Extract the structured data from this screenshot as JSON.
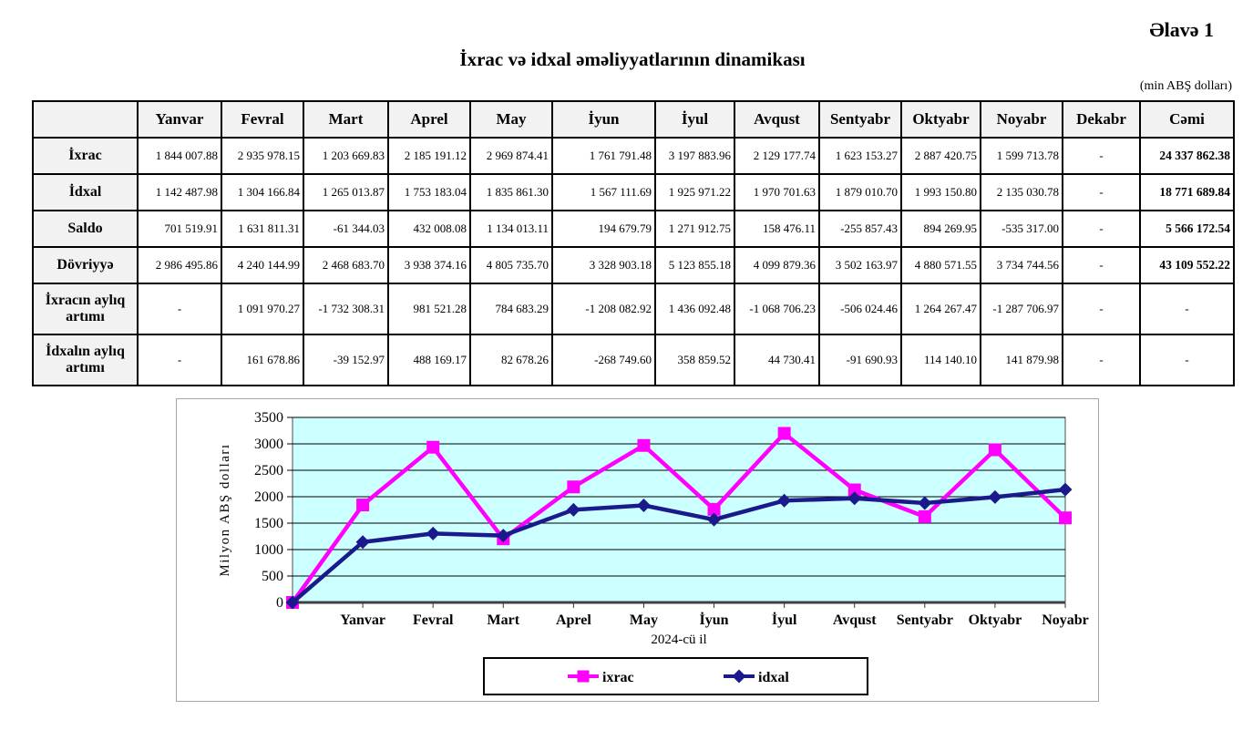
{
  "page": {
    "appendix_label": "Əlavə 1",
    "title": "İxrac və idxal əməliyyatlarının dinamikası",
    "unit_note": "(min ABŞ dolları)"
  },
  "table": {
    "col_headers": [
      "",
      "Yanvar",
      "Fevral",
      "Mart",
      "Aprel",
      "May",
      "İyun",
      "İyul",
      "Avqust",
      "Sentyabr",
      "Oktyabr",
      "Noyabr",
      "Dekabr",
      "Cəmi"
    ],
    "rows": [
      {
        "label": "İxrac",
        "values": [
          "1 844 007.88",
          "2 935 978.15",
          "1 203 669.83",
          "2 185 191.12",
          "2 969 874.41",
          "1 761 791.48",
          "3 197 883.96",
          "2 129 177.74",
          "1 623 153.27",
          "2 887 420.75",
          "1 599 713.78",
          "-",
          "24 337 862.38"
        ]
      },
      {
        "label": "İdxal",
        "values": [
          "1 142 487.98",
          "1 304 166.84",
          "1 265 013.87",
          "1 753 183.04",
          "1 835 861.30",
          "1 567 111.69",
          "1 925 971.22",
          "1 970 701.63",
          "1 879 010.70",
          "1 993 150.80",
          "2 135 030.78",
          "-",
          "18 771 689.84"
        ]
      },
      {
        "label": "Saldo",
        "values": [
          "701 519.91",
          "1 631 811.31",
          "-61 344.03",
          "432 008.08",
          "1 134 013.11",
          "194 679.79",
          "1 271 912.75",
          "158 476.11",
          "-255 857.43",
          "894 269.95",
          "-535 317.00",
          "-",
          "5 566 172.54"
        ]
      },
      {
        "label": "Dövriyyə",
        "values": [
          "2 986 495.86",
          "4 240 144.99",
          "2 468 683.70",
          "3 938 374.16",
          "4 805 735.70",
          "3 328 903.18",
          "5 123 855.18",
          "4 099 879.36",
          "3 502 163.97",
          "4 880 571.55",
          "3 734 744.56",
          "-",
          "43 109 552.22"
        ]
      },
      {
        "label": "İxracın aylıq artımı",
        "values": [
          "-",
          "1 091 970.27",
          "-1 732 308.31",
          "981 521.28",
          "784 683.29",
          "-1 208 082.92",
          "1 436 092.48",
          "-1 068 706.23",
          "-506 024.46",
          "1 264 267.47",
          "-1 287 706.97",
          "-",
          "-"
        ]
      },
      {
        "label": "İdxalın aylıq artımı",
        "values": [
          "-",
          "161 678.86",
          "-39 152.97",
          "488 169.17",
          "82 678.26",
          "-268 749.60",
          "358 859.52",
          "44 730.41",
          "-91 690.93",
          "114 140.10",
          "141 879.98",
          "-",
          "-"
        ]
      }
    ]
  },
  "chart_data": {
    "type": "line",
    "title": "",
    "xlabel": "2024-cü il",
    "ylabel": "Milyon ABŞ dolları",
    "ylim": [
      0,
      3500
    ],
    "ytick_step": 500,
    "grid": true,
    "legend_position": "bottom",
    "plot_bg": "#ccffff",
    "categories": [
      "",
      "Yanvar",
      "Fevral",
      "Mart",
      "Aprel",
      "May",
      "İyun",
      "İyul",
      "Avqust",
      "Sentyabr",
      "Oktyabr",
      "Noyabr"
    ],
    "series": [
      {
        "name": "ixrac",
        "color": "#ff00ff",
        "marker": "square",
        "values": [
          0,
          1844.0,
          2936.0,
          1203.7,
          2185.2,
          2969.9,
          1761.8,
          3197.9,
          2129.2,
          1623.2,
          2887.4,
          1599.7
        ]
      },
      {
        "name": "idxal",
        "color": "#1a1a8c",
        "marker": "diamond",
        "values": [
          0,
          1142.5,
          1304.2,
          1265.0,
          1753.2,
          1835.9,
          1567.1,
          1926.0,
          1970.7,
          1879.0,
          1993.2,
          2135.0
        ]
      }
    ]
  }
}
